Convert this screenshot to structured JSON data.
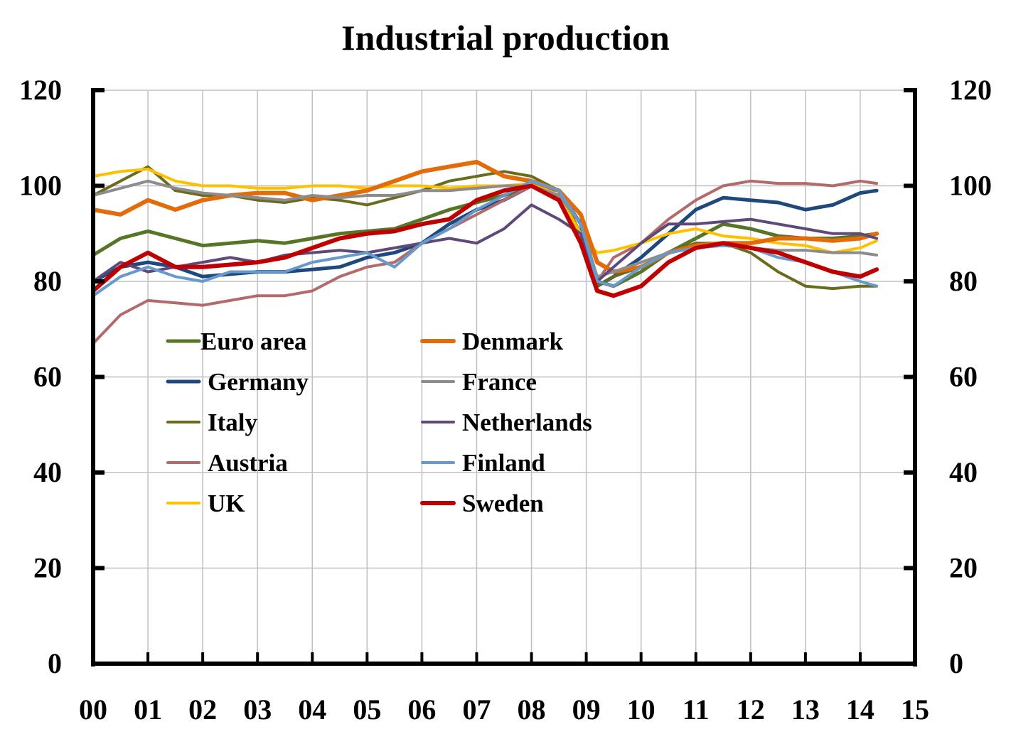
{
  "chart_data": {
    "type": "line",
    "title": "Industrial production",
    "xlabel": "",
    "ylabel": "",
    "ylim": [
      0,
      120
    ],
    "y_ticks": [
      "0",
      "20",
      "40",
      "60",
      "80",
      "100",
      "120"
    ],
    "y_ticks_right": [
      "0",
      "20",
      "40",
      "60",
      "80",
      "100",
      "120"
    ],
    "x_ticks": [
      "00",
      "01",
      "02",
      "03",
      "04",
      "05",
      "06",
      "07",
      "08",
      "09",
      "10",
      "11",
      "12",
      "13",
      "14",
      "15"
    ],
    "xlim": [
      2000,
      2015
    ],
    "grid": true,
    "legend_placement": "center-left",
    "x": [
      2000.0,
      2000.5,
      2001.0,
      2001.5,
      2002.0,
      2002.5,
      2003.0,
      2003.5,
      2004.0,
      2004.5,
      2005.0,
      2005.5,
      2006.0,
      2006.5,
      2007.0,
      2007.5,
      2008.0,
      2008.5,
      2008.9,
      2009.2,
      2009.5,
      2010.0,
      2010.5,
      2011.0,
      2011.5,
      2012.0,
      2012.5,
      2013.0,
      2013.5,
      2014.0,
      2014.3
    ],
    "series": [
      {
        "name": "Euro area",
        "color": "#567526",
        "width": 5,
        "values": [
          85.5,
          89,
          90.5,
          89,
          87.5,
          88,
          88.5,
          88,
          89,
          90,
          90.5,
          91,
          93,
          95,
          96.5,
          98,
          100,
          98,
          90,
          80,
          79,
          82,
          86,
          89,
          92,
          91,
          89.5,
          89,
          89,
          89.5,
          90
        ]
      },
      {
        "name": "Germany",
        "color": "#1f497d",
        "width": 5,
        "values": [
          80,
          83,
          84,
          83,
          81,
          81.5,
          82,
          82,
          82.5,
          83,
          85,
          86,
          88,
          92,
          95,
          97,
          100,
          99,
          92,
          79,
          81,
          85,
          90,
          95,
          97.5,
          97,
          96.5,
          95,
          96,
          98.5,
          99
        ]
      },
      {
        "name": "Italy",
        "color": "#6b6b1e",
        "width": 4,
        "values": [
          98,
          101,
          104,
          99,
          98,
          98,
          97,
          96.5,
          97.5,
          97,
          96,
          97.5,
          99,
          101,
          102,
          103,
          102,
          99,
          90,
          79,
          81,
          83,
          86,
          88,
          88,
          86,
          82,
          79,
          78.5,
          79,
          79
        ]
      },
      {
        "name": "Austria",
        "color": "#b46a6a",
        "width": 4,
        "values": [
          67,
          73,
          76,
          75.5,
          75,
          76,
          77,
          77,
          78,
          81,
          83,
          84,
          88,
          91,
          94,
          97,
          100,
          99,
          94,
          80,
          85,
          88,
          93,
          97,
          100,
          101,
          100.5,
          100.5,
          100,
          101,
          100.5
        ]
      },
      {
        "name": "UK",
        "color": "#ffc000",
        "width": 4,
        "values": [
          102,
          103,
          103.5,
          101,
          100,
          100,
          99.5,
          99.5,
          100,
          100,
          99.5,
          100,
          100,
          99.5,
          100,
          100,
          100.5,
          98,
          90,
          86,
          86.5,
          88,
          90,
          91,
          89.5,
          89,
          88,
          87.5,
          86,
          87,
          88.5
        ]
      },
      {
        "name": "Denmark",
        "color": "#e36c0a",
        "width": 6,
        "values": [
          95,
          94,
          97,
          95,
          97,
          98,
          98.5,
          98.5,
          97,
          98,
          99,
          101,
          103,
          104,
          105,
          102,
          101,
          99,
          94,
          84,
          82,
          83,
          86,
          87.5,
          88,
          88,
          89,
          89,
          88.5,
          89,
          90
        ]
      },
      {
        "name": "France",
        "color": "#8c8c8c",
        "width": 4,
        "values": [
          98,
          99.5,
          101,
          99.5,
          98.5,
          98,
          97.5,
          97,
          98,
          97.5,
          98,
          98,
          99,
          99,
          99.5,
          100,
          100,
          98,
          92,
          81,
          82,
          84,
          86,
          87,
          88,
          87,
          86.5,
          86.5,
          86,
          86,
          85.5
        ]
      },
      {
        "name": "Netherlands",
        "color": "#5f497a",
        "width": 4,
        "values": [
          80,
          84,
          82,
          83,
          84,
          85,
          84,
          85.5,
          86,
          86.5,
          86,
          87,
          88,
          89,
          88,
          91,
          96,
          93,
          90,
          80,
          83,
          88,
          92,
          92,
          92.5,
          93,
          92,
          91,
          90,
          90,
          89
        ]
      },
      {
        "name": "Finland",
        "color": "#6699cc",
        "width": 4,
        "values": [
          77,
          81,
          83,
          81,
          80,
          82,
          82,
          82,
          84,
          85,
          86,
          83,
          88,
          91,
          95,
          98,
          101,
          99,
          92,
          80,
          79,
          83,
          86,
          87,
          87.5,
          87,
          85,
          84,
          82,
          80,
          79
        ]
      },
      {
        "name": "Sweden",
        "color": "#c00000",
        "width": 6,
        "values": [
          78,
          83,
          86,
          83,
          83,
          83.5,
          84,
          85,
          87,
          89,
          90,
          90.5,
          92,
          93,
          97,
          99,
          100,
          97,
          88,
          78,
          77,
          79,
          84,
          87,
          88,
          87,
          86,
          84,
          82,
          81,
          82.5
        ]
      }
    ]
  }
}
